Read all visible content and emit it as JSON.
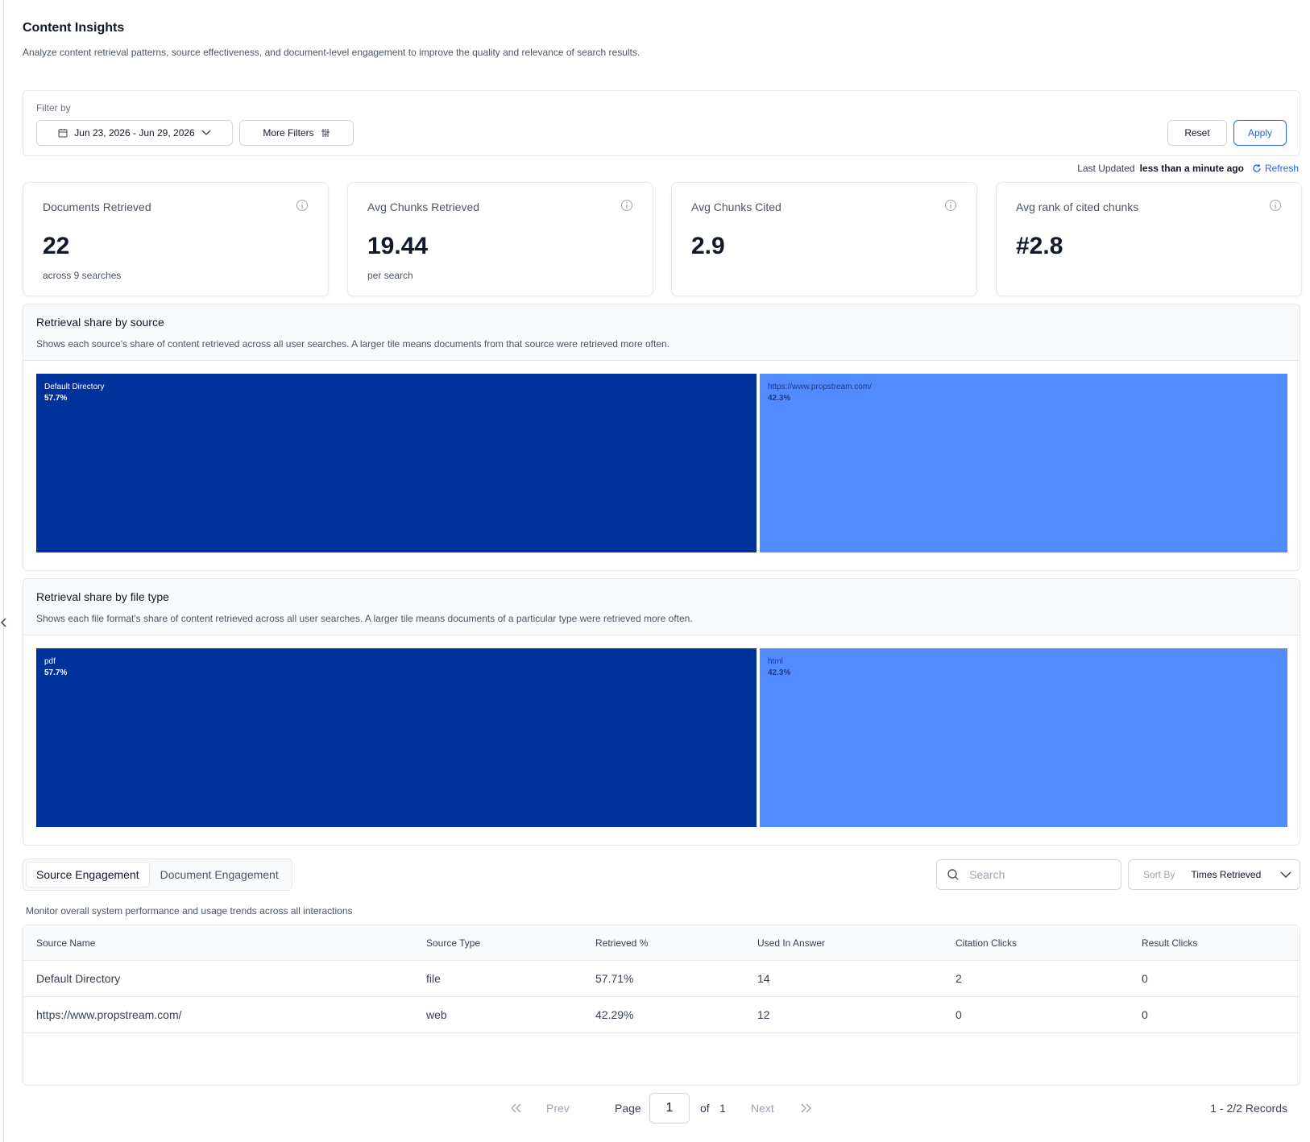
{
  "page": {
    "title": "Content Insights",
    "description": "Analyze content retrieval patterns, source effectiveness, and document-level engagement to improve the quality and relevance of search results."
  },
  "filters": {
    "label": "Filter by",
    "date_range": "Jun 23, 2026 - Jun 29, 2026",
    "more_filters": "More Filters",
    "reset": "Reset",
    "apply": "Apply"
  },
  "last_updated": {
    "label": "Last Updated",
    "value": "less than a minute ago",
    "refresh": "Refresh"
  },
  "kpis": [
    {
      "title": "Documents Retrieved",
      "value": "22",
      "sub": "across 9 searches"
    },
    {
      "title": "Avg Chunks Retrieved",
      "value": "19.44",
      "sub": "per search"
    },
    {
      "title": "Avg Chunks Cited",
      "value": "2.9",
      "sub": ""
    },
    {
      "title": "Avg rank of cited chunks",
      "value": "#2.8",
      "sub": ""
    }
  ],
  "chart_data": [
    {
      "type": "treemap",
      "title": "Retrieval share by source",
      "description": "Shows each source's share of content retrieved across all user searches. A larger tile means documents from that source were retrieved more often.",
      "categories": [
        "Default Directory",
        "https://www.propstream.com/"
      ],
      "values": [
        57.7,
        42.3
      ],
      "labels": [
        "57.7%",
        "42.3%"
      ],
      "colors": [
        "#00329b",
        "#528bff"
      ],
      "text_colors": [
        "#ffffff",
        "#1e3a8a"
      ]
    },
    {
      "type": "treemap",
      "title": "Retrieval share by file type",
      "description": "Shows each file format's share of content retrieved across all user searches. A larger tile means documents of a particular type were retrieved more often.",
      "categories": [
        "pdf",
        "html"
      ],
      "values": [
        57.7,
        42.3
      ],
      "labels": [
        "57.7%",
        "42.3%"
      ],
      "colors": [
        "#00329b",
        "#528bff"
      ],
      "text_colors": [
        "#ffffff",
        "#1e3a8a"
      ]
    }
  ],
  "engagement": {
    "tabs": [
      "Source Engagement",
      "Document Engagement"
    ],
    "active_tab": "Source Engagement",
    "search_placeholder": "Search",
    "sort_label": "Sort By",
    "sort_value": "Times Retrieved",
    "description": "Monitor overall system performance and usage trends across all interactions",
    "columns": [
      "Source Name",
      "Source Type",
      "Retrieved %",
      "Used In Answer",
      "Citation Clicks",
      "Result Clicks"
    ],
    "rows": [
      [
        "Default Directory",
        "file",
        "57.71%",
        "14",
        "2",
        "0"
      ],
      [
        "https://www.propstream.com/",
        "web",
        "42.29%",
        "12",
        "0",
        "0"
      ]
    ]
  },
  "pagination": {
    "prev": "Prev",
    "next": "Next",
    "page_label": "Page",
    "current": "1",
    "of_label": "of",
    "total_pages": "1",
    "records": "1 - 2/2 Records"
  },
  "colors": {
    "accent": "#2563eb",
    "tile_dark": "#00329b",
    "tile_light": "#528bff"
  }
}
